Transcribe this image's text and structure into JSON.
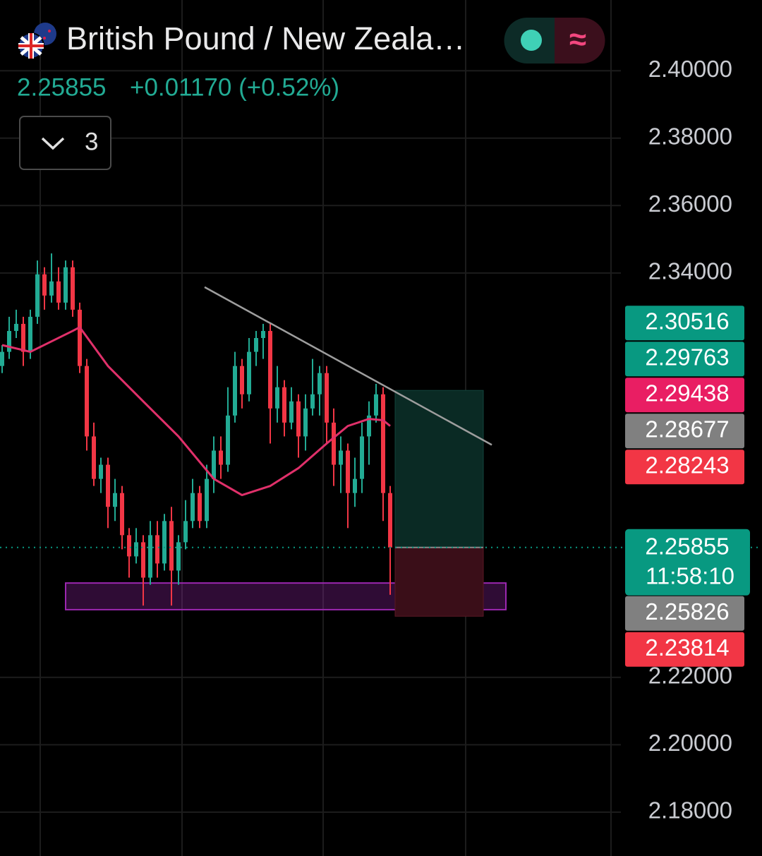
{
  "header": {
    "title": "British Pound / New Zeala…",
    "price": "2.25855",
    "change": "+0.01170 (+0.52%)",
    "indicator_count": "3",
    "toggle_icon": "≈"
  },
  "chart_data": {
    "type": "candlestick",
    "up_color": "#22ab94",
    "down_color": "#f23645",
    "xlim": [
      -0.3,
      87.7
    ],
    "ylim": [
      2.167,
      2.421
    ],
    "yticks": [
      {
        "value": 2.4,
        "label": "2.40000"
      },
      {
        "value": 2.38,
        "label": "2.38000"
      },
      {
        "value": 2.36,
        "label": "2.36000"
      },
      {
        "value": 2.34,
        "label": "2.34000"
      },
      {
        "value": 2.22,
        "label": "2.22000"
      },
      {
        "value": 2.2,
        "label": "2.20000"
      },
      {
        "value": 2.18,
        "label": "2.18000"
      }
    ],
    "grid": true,
    "ohlc": [
      [
        2.3124,
        2.3186,
        2.3103,
        2.3166
      ],
      [
        2.3166,
        2.327,
        2.3145,
        2.3228
      ],
      [
        2.3228,
        2.3291,
        2.3207,
        2.3249
      ],
      [
        2.3249,
        2.327,
        2.3124,
        2.3166
      ],
      [
        2.3166,
        2.3291,
        2.3145,
        2.327
      ],
      [
        2.327,
        2.3437,
        2.3249,
        2.3396
      ],
      [
        2.3396,
        2.3417,
        2.3291,
        2.3333
      ],
      [
        2.3333,
        2.3458,
        2.3312,
        2.3375
      ],
      [
        2.3375,
        2.3417,
        2.3291,
        2.3312
      ],
      [
        2.3312,
        2.3437,
        2.3291,
        2.3417
      ],
      [
        2.3417,
        2.3437,
        2.327,
        2.3291
      ],
      [
        2.3291,
        2.3312,
        2.3103,
        2.3124
      ],
      [
        2.3124,
        2.3145,
        2.2873,
        2.2915
      ],
      [
        2.2915,
        2.2956,
        2.2768,
        2.2789
      ],
      [
        2.2789,
        2.2852,
        2.2747,
        2.2831
      ],
      [
        2.2831,
        2.2852,
        2.2643,
        2.2706
      ],
      [
        2.2706,
        2.2789,
        2.2664,
        2.2747
      ],
      [
        2.2747,
        2.2768,
        2.258,
        2.2622
      ],
      [
        2.2622,
        2.2643,
        2.2496,
        2.2559
      ],
      [
        2.2559,
        2.2643,
        2.2538,
        2.2601
      ],
      [
        2.2601,
        2.2622,
        2.2413,
        2.2496
      ],
      [
        2.2496,
        2.2664,
        2.2475,
        2.2622
      ],
      [
        2.2622,
        2.2664,
        2.2496,
        2.2538
      ],
      [
        2.2538,
        2.2685,
        2.2517,
        2.2664
      ],
      [
        2.2664,
        2.2706,
        2.2413,
        2.2517
      ],
      [
        2.2517,
        2.2622,
        2.2475,
        2.2601
      ],
      [
        2.2601,
        2.2726,
        2.258,
        2.2664
      ],
      [
        2.2664,
        2.2789,
        2.2643,
        2.2747
      ],
      [
        2.2747,
        2.2768,
        2.2643,
        2.2664
      ],
      [
        2.2664,
        2.2831,
        2.2643,
        2.2789
      ],
      [
        2.2789,
        2.2915,
        2.2747,
        2.2873
      ],
      [
        2.2873,
        2.2915,
        2.2789,
        2.2831
      ],
      [
        2.2831,
        2.3061,
        2.281,
        2.2977
      ],
      [
        2.2977,
        2.3166,
        2.2956,
        2.3124
      ],
      [
        2.3124,
        2.3145,
        2.2998,
        2.304
      ],
      [
        2.304,
        2.3207,
        2.3019,
        2.3166
      ],
      [
        2.3166,
        2.3228,
        2.3124,
        2.3207
      ],
      [
        2.3207,
        2.3249,
        2.3145,
        2.3228
      ],
      [
        2.3228,
        2.3249,
        2.2894,
        2.2998
      ],
      [
        2.2998,
        2.3124,
        2.2956,
        2.3061
      ],
      [
        2.3061,
        2.3082,
        2.2915,
        2.2956
      ],
      [
        2.2956,
        2.3061,
        2.2936,
        2.3019
      ],
      [
        2.3019,
        2.304,
        2.2852,
        2.2915
      ],
      [
        2.2915,
        2.304,
        2.2873,
        2.2998
      ],
      [
        2.2998,
        2.3145,
        2.2977,
        2.304
      ],
      [
        2.304,
        2.3124,
        2.2977,
        2.3103
      ],
      [
        2.3103,
        2.3124,
        2.2894,
        2.2956
      ],
      [
        2.2956,
        2.2998,
        2.2768,
        2.2831
      ],
      [
        2.2831,
        2.2915,
        2.2747,
        2.2873
      ],
      [
        2.2873,
        2.2894,
        2.2643,
        2.2747
      ],
      [
        2.2747,
        2.2852,
        2.2706,
        2.2789
      ],
      [
        2.2789,
        2.2956,
        2.2747,
        2.2915
      ],
      [
        2.2915,
        2.3019,
        2.2831,
        2.2977
      ],
      [
        2.2977,
        2.3071,
        2.2956,
        2.304
      ],
      [
        2.304,
        2.3061,
        2.2664,
        2.2747
      ],
      [
        2.2747,
        2.2768,
        2.2445,
        2.25855
      ]
    ],
    "ma": {
      "color": "#e0306a",
      "x": [
        0,
        4,
        10,
        11,
        15,
        20,
        25,
        30,
        34,
        38,
        42,
        46,
        49,
        52,
        54,
        55
      ],
      "values": [
        2.3186,
        2.3166,
        2.3228,
        2.3239,
        2.3124,
        2.3019,
        2.2915,
        2.2789,
        2.2741,
        2.2768,
        2.2821,
        2.2894,
        2.2946,
        2.2967,
        2.2963,
        2.2946
      ]
    },
    "trendline": {
      "color": "#9e9e9e",
      "x": [
        28.7,
        69.4
      ],
      "values": [
        2.3358,
        2.289
      ]
    },
    "zone": {
      "color": "#9c27b0",
      "x": [
        9,
        71.4
      ],
      "values": [
        2.248,
        2.2401
      ]
    },
    "position": {
      "x": [
        55.7,
        68.2
      ],
      "entry": 2.25855,
      "target": 2.30516,
      "stop": 2.23814
    },
    "price_labels": [
      {
        "value": 2.30516,
        "color": "#089981"
      },
      {
        "value": 2.29763,
        "color": "#089981"
      },
      {
        "value": 2.29438,
        "color": "#e91e63"
      },
      {
        "value": 2.28677,
        "color": "#808080"
      },
      {
        "value": 2.28243,
        "color": "#f23645"
      },
      {
        "value": 2.25855,
        "color": "#089981",
        "time": "11:58:10",
        "current": true
      },
      {
        "value": 2.25826,
        "color": "#808080"
      },
      {
        "value": 2.23814,
        "color": "#f23645"
      }
    ]
  }
}
